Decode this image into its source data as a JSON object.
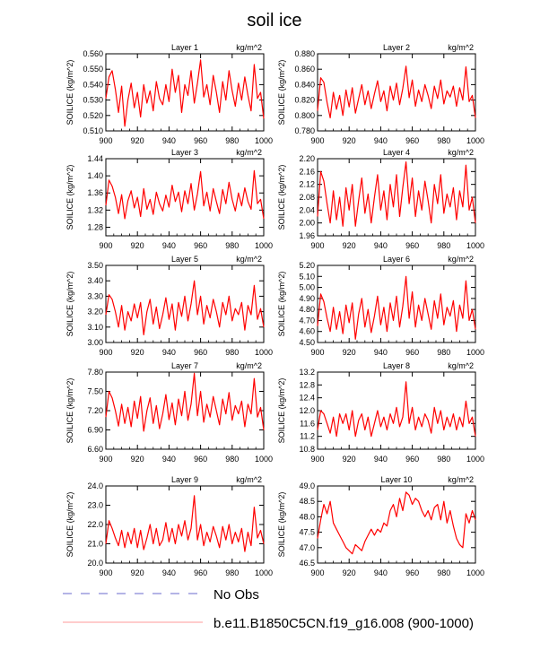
{
  "title": "soil ice",
  "colors": {
    "series": "#ff0000",
    "obs": "#6a6acd",
    "legend_line": "#ff9a9a",
    "axis": "#000000"
  },
  "legend": {
    "obs_label": "No Obs",
    "model_label": "b.e11.B1850C5CN.f19_g16.008 (900-1000)"
  },
  "chart_data": [
    {
      "type": "line",
      "title": "Layer 1",
      "units": "kg/m^2",
      "ylabel": "SOILICE  (kg/m^2)",
      "xlim": [
        900,
        1000
      ],
      "ylim": [
        0.51,
        0.56
      ],
      "xticks": [
        "900",
        "920",
        "940",
        "960",
        "980",
        "1000"
      ],
      "yticks": [
        "0.510",
        "0.520",
        "0.530",
        "0.540",
        "0.550",
        "0.560"
      ],
      "x": [
        900,
        902,
        904,
        906,
        908,
        910,
        912,
        914,
        916,
        918,
        920,
        922,
        924,
        926,
        928,
        930,
        932,
        934,
        936,
        938,
        940,
        942,
        944,
        946,
        948,
        950,
        952,
        954,
        956,
        958,
        960,
        962,
        964,
        966,
        968,
        970,
        972,
        974,
        976,
        978,
        980,
        982,
        984,
        986,
        988,
        990,
        992,
        994,
        996,
        998,
        1000
      ],
      "y": [
        0.531,
        0.545,
        0.549,
        0.537,
        0.522,
        0.539,
        0.513,
        0.53,
        0.541,
        0.525,
        0.535,
        0.519,
        0.54,
        0.528,
        0.536,
        0.523,
        0.542,
        0.531,
        0.527,
        0.54,
        0.529,
        0.55,
        0.535,
        0.546,
        0.522,
        0.54,
        0.533,
        0.549,
        0.528,
        0.541,
        0.556,
        0.532,
        0.54,
        0.527,
        0.546,
        0.535,
        0.522,
        0.542,
        0.53,
        0.549,
        0.536,
        0.526,
        0.541,
        0.53,
        0.545,
        0.533,
        0.523,
        0.553,
        0.531,
        0.535,
        0.518
      ]
    },
    {
      "type": "line",
      "title": "Layer 2",
      "units": "kg/m^2",
      "ylabel": "SOILICE  (kg/m^2)",
      "xlim": [
        900,
        1000
      ],
      "ylim": [
        0.78,
        0.88
      ],
      "xticks": [
        "900",
        "920",
        "940",
        "960",
        "980",
        "1000"
      ],
      "yticks": [
        "0.780",
        "0.800",
        "0.820",
        "0.840",
        "0.860",
        "0.880"
      ],
      "x": [
        900,
        902,
        904,
        906,
        908,
        910,
        912,
        914,
        916,
        918,
        920,
        922,
        924,
        926,
        928,
        930,
        932,
        934,
        936,
        938,
        940,
        942,
        944,
        946,
        948,
        950,
        952,
        954,
        956,
        958,
        960,
        962,
        964,
        966,
        968,
        970,
        972,
        974,
        976,
        978,
        980,
        982,
        984,
        986,
        988,
        990,
        992,
        994,
        996,
        998,
        1000
      ],
      "y": [
        0.806,
        0.849,
        0.843,
        0.817,
        0.797,
        0.83,
        0.808,
        0.826,
        0.8,
        0.833,
        0.811,
        0.836,
        0.803,
        0.822,
        0.84,
        0.814,
        0.832,
        0.809,
        0.828,
        0.845,
        0.818,
        0.832,
        0.806,
        0.838,
        0.82,
        0.842,
        0.814,
        0.835,
        0.864,
        0.823,
        0.846,
        0.812,
        0.833,
        0.818,
        0.84,
        0.826,
        0.809,
        0.838,
        0.822,
        0.846,
        0.815,
        0.832,
        0.824,
        0.838,
        0.812,
        0.836,
        0.82,
        0.863,
        0.818,
        0.826,
        0.797
      ]
    },
    {
      "type": "line",
      "title": "Layer 3",
      "units": "kg/m^2",
      "ylabel": "SOILICE  (kg/m^2)",
      "xlim": [
        900,
        1000
      ],
      "ylim": [
        1.26,
        1.44
      ],
      "xticks": [
        "900",
        "920",
        "940",
        "960",
        "980",
        "1000"
      ],
      "yticks": [
        "1.28",
        "1.32",
        "1.36",
        "1.40",
        "1.44"
      ],
      "x": [
        900,
        902,
        904,
        906,
        908,
        910,
        912,
        914,
        916,
        918,
        920,
        922,
        924,
        926,
        928,
        930,
        932,
        934,
        936,
        938,
        940,
        942,
        944,
        946,
        948,
        950,
        952,
        954,
        956,
        958,
        960,
        962,
        964,
        966,
        968,
        970,
        972,
        974,
        976,
        978,
        980,
        982,
        984,
        986,
        988,
        990,
        992,
        994,
        996,
        998,
        1000
      ],
      "y": [
        1.331,
        1.39,
        1.376,
        1.35,
        1.312,
        1.356,
        1.3,
        1.342,
        1.365,
        1.325,
        1.35,
        1.305,
        1.37,
        1.322,
        1.345,
        1.31,
        1.362,
        1.335,
        1.318,
        1.355,
        1.327,
        1.378,
        1.34,
        1.362,
        1.316,
        1.365,
        1.335,
        1.382,
        1.32,
        1.358,
        1.41,
        1.33,
        1.362,
        1.318,
        1.37,
        1.34,
        1.312,
        1.368,
        1.335,
        1.385,
        1.345,
        1.318,
        1.36,
        1.33,
        1.372,
        1.34,
        1.322,
        1.412,
        1.335,
        1.345,
        1.3
      ]
    },
    {
      "type": "line",
      "title": "Layer 4",
      "units": "kg/m^2",
      "ylabel": "SOILICE  (kg/m^2)",
      "xlim": [
        900,
        1000
      ],
      "ylim": [
        1.96,
        2.2
      ],
      "xticks": [
        "900",
        "920",
        "940",
        "960",
        "980",
        "1000"
      ],
      "yticks": [
        "1.96",
        "2.00",
        "2.04",
        "2.08",
        "2.12",
        "2.16",
        "2.20"
      ],
      "x": [
        900,
        902,
        904,
        906,
        908,
        910,
        912,
        914,
        916,
        918,
        920,
        922,
        924,
        926,
        928,
        930,
        932,
        934,
        936,
        938,
        940,
        942,
        944,
        946,
        948,
        950,
        952,
        954,
        956,
        958,
        960,
        962,
        964,
        966,
        968,
        970,
        972,
        974,
        976,
        978,
        980,
        982,
        984,
        986,
        988,
        990,
        992,
        994,
        996,
        998,
        1000
      ],
      "y": [
        2.02,
        2.16,
        2.13,
        2.06,
        2.0,
        2.1,
        2.01,
        2.08,
        1.99,
        2.11,
        2.04,
        2.12,
        1.99,
        2.07,
        2.14,
        2.03,
        2.09,
        2.0,
        2.08,
        2.15,
        2.04,
        2.1,
        2.01,
        2.12,
        2.05,
        2.15,
        2.02,
        2.11,
        2.19,
        2.06,
        2.14,
        2.02,
        2.1,
        2.04,
        2.13,
        2.07,
        2.0,
        2.12,
        2.06,
        2.15,
        2.03,
        2.09,
        2.05,
        2.11,
        2.01,
        2.1,
        2.05,
        2.18,
        2.04,
        2.08,
        2.0
      ]
    },
    {
      "type": "line",
      "title": "Layer 5",
      "units": "kg/m^2",
      "ylabel": "SOILICE  (kg/m^2)",
      "xlim": [
        900,
        1000
      ],
      "ylim": [
        3.0,
        3.5
      ],
      "xticks": [
        "900",
        "920",
        "940",
        "960",
        "980",
        "1000"
      ],
      "yticks": [
        "3.00",
        "3.10",
        "3.20",
        "3.30",
        "3.40",
        "3.50"
      ],
      "x": [
        900,
        902,
        904,
        906,
        908,
        910,
        912,
        914,
        916,
        918,
        920,
        922,
        924,
        926,
        928,
        930,
        932,
        934,
        936,
        938,
        940,
        942,
        944,
        946,
        948,
        950,
        952,
        954,
        956,
        958,
        960,
        962,
        964,
        966,
        968,
        970,
        972,
        974,
        976,
        978,
        980,
        982,
        984,
        986,
        988,
        990,
        992,
        994,
        996,
        998,
        1000
      ],
      "y": [
        3.18,
        3.31,
        3.28,
        3.2,
        3.1,
        3.24,
        3.08,
        3.2,
        3.14,
        3.25,
        3.16,
        3.26,
        3.05,
        3.2,
        3.28,
        3.12,
        3.23,
        3.09,
        3.18,
        3.29,
        3.15,
        3.25,
        3.08,
        3.26,
        3.17,
        3.3,
        3.14,
        3.25,
        3.4,
        3.18,
        3.3,
        3.12,
        3.24,
        3.16,
        3.28,
        3.2,
        3.1,
        3.26,
        3.18,
        3.3,
        3.14,
        3.22,
        3.18,
        3.26,
        3.08,
        3.24,
        3.18,
        3.37,
        3.15,
        3.22,
        3.1
      ]
    },
    {
      "type": "line",
      "title": "Layer 6",
      "units": "kg/m^2",
      "ylabel": "SOILICE  (kg/m^2)",
      "xlim": [
        900,
        1000
      ],
      "ylim": [
        4.5,
        5.2
      ],
      "xticks": [
        "900",
        "920",
        "940",
        "960",
        "980",
        "1000"
      ],
      "yticks": [
        "4.50",
        "4.60",
        "4.70",
        "4.80",
        "4.90",
        "5.00",
        "5.10",
        "5.20"
      ],
      "x": [
        900,
        902,
        904,
        906,
        908,
        910,
        912,
        914,
        916,
        918,
        920,
        922,
        924,
        926,
        928,
        930,
        932,
        934,
        936,
        938,
        940,
        942,
        944,
        946,
        948,
        950,
        952,
        954,
        956,
        958,
        960,
        962,
        964,
        966,
        968,
        970,
        972,
        974,
        976,
        978,
        980,
        982,
        984,
        986,
        988,
        990,
        992,
        994,
        996,
        998,
        1000
      ],
      "y": [
        4.65,
        4.94,
        4.87,
        4.72,
        4.6,
        4.82,
        4.62,
        4.78,
        4.58,
        4.84,
        4.68,
        4.86,
        4.53,
        4.76,
        4.9,
        4.64,
        4.8,
        4.59,
        4.74,
        4.92,
        4.66,
        4.82,
        4.6,
        4.86,
        4.7,
        4.92,
        4.64,
        4.83,
        5.1,
        4.72,
        4.96,
        4.64,
        4.84,
        4.7,
        4.9,
        4.76,
        4.62,
        4.88,
        4.72,
        4.94,
        4.66,
        4.82,
        4.74,
        4.88,
        4.6,
        4.84,
        4.72,
        5.06,
        4.7,
        4.8,
        4.62
      ]
    },
    {
      "type": "line",
      "title": "Layer 7",
      "units": "kg/m^2",
      "ylabel": "SOILICE  (kg/m^2)",
      "xlim": [
        900,
        1000
      ],
      "ylim": [
        6.6,
        7.8
      ],
      "xticks": [
        "900",
        "920",
        "940",
        "960",
        "980",
        "1000"
      ],
      "yticks": [
        "6.60",
        "6.90",
        "7.20",
        "7.50",
        "7.80"
      ],
      "x": [
        900,
        902,
        904,
        906,
        908,
        910,
        912,
        914,
        916,
        918,
        920,
        922,
        924,
        926,
        928,
        930,
        932,
        934,
        936,
        938,
        940,
        942,
        944,
        946,
        948,
        950,
        952,
        954,
        956,
        958,
        960,
        962,
        964,
        966,
        968,
        970,
        972,
        974,
        976,
        978,
        980,
        982,
        984,
        986,
        988,
        990,
        992,
        994,
        996,
        998,
        1000
      ],
      "y": [
        7.1,
        7.5,
        7.4,
        7.2,
        6.96,
        7.3,
        7.0,
        7.25,
        6.95,
        7.35,
        7.08,
        7.42,
        6.88,
        7.2,
        7.4,
        7.0,
        7.28,
        6.92,
        7.15,
        7.45,
        7.06,
        7.32,
        6.98,
        7.38,
        7.12,
        7.5,
        7.05,
        7.3,
        7.78,
        7.12,
        7.5,
        7.02,
        7.3,
        7.1,
        7.42,
        7.2,
        6.98,
        7.38,
        7.15,
        7.48,
        7.05,
        7.28,
        7.15,
        7.35,
        6.95,
        7.3,
        7.15,
        7.7,
        7.1,
        7.25,
        6.9
      ]
    },
    {
      "type": "line",
      "title": "Layer 8",
      "units": "kg/m^2",
      "ylabel": "SOILICE  (kg/m^2)",
      "xlim": [
        900,
        1000
      ],
      "ylim": [
        10.8,
        13.2
      ],
      "xticks": [
        "900",
        "920",
        "940",
        "960",
        "980",
        "1000"
      ],
      "yticks": [
        "10.8",
        "11.2",
        "11.6",
        "12.0",
        "12.4",
        "12.8",
        "13.2"
      ],
      "x": [
        900,
        902,
        904,
        906,
        908,
        910,
        912,
        914,
        916,
        918,
        920,
        922,
        924,
        926,
        928,
        930,
        932,
        934,
        936,
        938,
        940,
        942,
        944,
        946,
        948,
        950,
        952,
        954,
        956,
        958,
        960,
        962,
        964,
        966,
        968,
        970,
        972,
        974,
        976,
        978,
        980,
        982,
        984,
        986,
        988,
        990,
        992,
        994,
        996,
        998,
        1000
      ],
      "y": [
        11.4,
        12.0,
        11.9,
        11.6,
        11.3,
        11.8,
        11.2,
        11.9,
        11.6,
        11.9,
        11.4,
        12.0,
        11.2,
        11.7,
        11.9,
        11.4,
        11.8,
        11.2,
        11.6,
        12.0,
        11.5,
        11.8,
        11.4,
        11.9,
        11.6,
        12.1,
        11.5,
        11.8,
        12.9,
        11.6,
        12.1,
        11.4,
        11.8,
        11.5,
        11.9,
        11.7,
        11.3,
        12.1,
        11.6,
        12.0,
        11.4,
        11.8,
        11.5,
        11.9,
        11.4,
        11.8,
        11.5,
        12.3,
        11.6,
        11.8,
        11.2
      ]
    },
    {
      "type": "line",
      "title": "Layer 9",
      "units": "kg/m^2",
      "ylabel": "SOILICE  (kg/m^2)",
      "xlim": [
        900,
        1000
      ],
      "ylim": [
        20.0,
        24.0
      ],
      "xticks": [
        "900",
        "920",
        "940",
        "960",
        "980",
        "1000"
      ],
      "yticks": [
        "20.0",
        "21.0",
        "22.0",
        "23.0",
        "24.0"
      ],
      "x": [
        900,
        902,
        904,
        906,
        908,
        910,
        912,
        914,
        916,
        918,
        920,
        922,
        924,
        926,
        928,
        930,
        932,
        934,
        936,
        938,
        940,
        942,
        944,
        946,
        948,
        950,
        952,
        954,
        956,
        958,
        960,
        962,
        964,
        966,
        968,
        970,
        972,
        974,
        976,
        978,
        980,
        982,
        984,
        986,
        988,
        990,
        992,
        994,
        996,
        998,
        1000
      ],
      "y": [
        21.0,
        22.2,
        21.8,
        21.3,
        20.9,
        21.7,
        20.8,
        21.6,
        21.0,
        21.8,
        20.8,
        21.7,
        20.7,
        21.3,
        22.0,
        21.0,
        21.8,
        20.9,
        21.2,
        22.1,
        21.1,
        21.8,
        21.0,
        22.0,
        21.4,
        22.2,
        21.2,
        21.8,
        23.5,
        21.2,
        22.0,
        20.9,
        21.6,
        21.1,
        21.9,
        21.4,
        20.8,
        21.9,
        21.2,
        22.0,
        21.0,
        21.6,
        21.1,
        21.8,
        20.6,
        21.6,
        20.9,
        22.9,
        21.3,
        21.7,
        21.0
      ]
    },
    {
      "type": "line",
      "title": "Layer 10",
      "units": "kg/m^2",
      "ylabel": "SOILICE  (kg/m^2)",
      "xlim": [
        900,
        1000
      ],
      "ylim": [
        46.5,
        49.0
      ],
      "xticks": [
        "900",
        "920",
        "940",
        "960",
        "980",
        "1000"
      ],
      "yticks": [
        "46.5",
        "47.0",
        "47.5",
        "48.0",
        "48.5",
        "49.0"
      ],
      "x": [
        900,
        902,
        904,
        906,
        908,
        910,
        912,
        914,
        916,
        918,
        920,
        922,
        924,
        926,
        928,
        930,
        932,
        934,
        936,
        938,
        940,
        942,
        944,
        946,
        948,
        950,
        952,
        954,
        956,
        958,
        960,
        962,
        964,
        966,
        968,
        970,
        972,
        974,
        976,
        978,
        980,
        982,
        984,
        986,
        988,
        990,
        992,
        994,
        996,
        998,
        1000
      ],
      "y": [
        47.3,
        47.9,
        48.4,
        48.1,
        48.5,
        47.8,
        47.6,
        47.4,
        47.2,
        47.0,
        46.9,
        46.8,
        47.1,
        47.0,
        46.9,
        47.2,
        47.4,
        47.6,
        47.4,
        47.6,
        47.5,
        47.8,
        47.7,
        48.2,
        48.4,
        48.0,
        48.6,
        48.2,
        48.8,
        48.7,
        48.4,
        48.6,
        48.5,
        48.2,
        48.0,
        48.2,
        47.9,
        48.3,
        48.4,
        47.9,
        48.5,
        47.8,
        48.2,
        47.7,
        47.3,
        47.1,
        47.0,
        48.1,
        47.8,
        48.2,
        47.9
      ]
    }
  ]
}
